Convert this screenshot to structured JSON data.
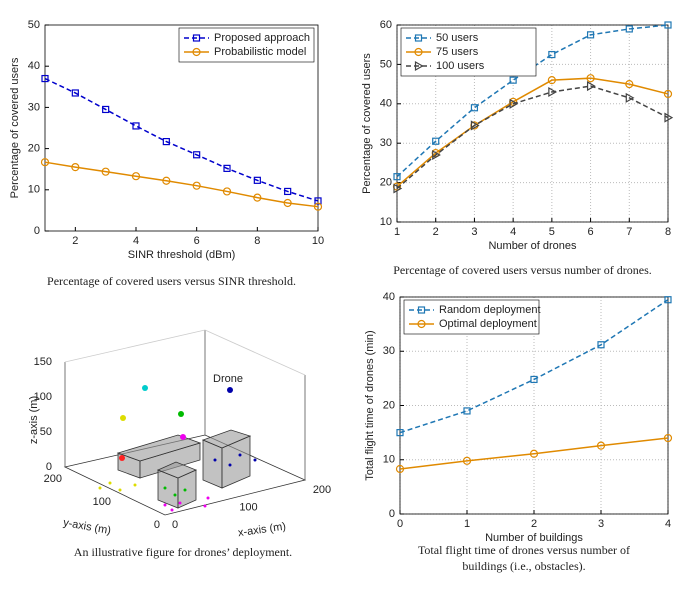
{
  "chart_data": [
    {
      "type": "line",
      "xlabel": "SINR threshold (dBm)",
      "ylabel": "Percentage of covered users",
      "x": [
        1,
        2,
        3,
        4,
        5,
        6,
        7,
        8,
        9,
        10
      ],
      "xlim": [
        1,
        10
      ],
      "xticks": [
        2,
        4,
        6,
        8,
        10
      ],
      "ylim": [
        0,
        50
      ],
      "yticks": [
        0,
        10,
        20,
        30,
        40,
        50
      ],
      "grid": false,
      "legend": "upper right",
      "series": [
        {
          "name": "Proposed approach",
          "color": "#0000cc",
          "marker": "square",
          "dash": true,
          "values": [
            37,
            33.5,
            29.5,
            25.5,
            21.7,
            18.5,
            15.2,
            12.3,
            9.6,
            7.3
          ]
        },
        {
          "name": "Probabilistic model",
          "color": "#e08a00",
          "marker": "circle",
          "dash": false,
          "values": [
            16.7,
            15.5,
            14.4,
            13.3,
            12.2,
            11,
            9.6,
            8.1,
            6.8,
            5.9
          ]
        }
      ],
      "caption": "Percentage of covered users versus SINR threshold."
    },
    {
      "type": "line",
      "xlabel": "Number of drones",
      "ylabel": "Percentage of covered users",
      "x": [
        1,
        2,
        3,
        4,
        5,
        6,
        7,
        8
      ],
      "xlim": [
        1,
        8
      ],
      "xticks": [
        1,
        2,
        3,
        4,
        5,
        6,
        7,
        8
      ],
      "ylim": [
        10,
        60
      ],
      "yticks": [
        10,
        20,
        30,
        40,
        50,
        60
      ],
      "grid": true,
      "legend": "upper left",
      "series": [
        {
          "name": "50 users",
          "color": "#1f77b4",
          "marker": "square",
          "dash": true,
          "values": [
            21.5,
            30.5,
            39,
            46,
            52.5,
            57.5,
            59,
            60
          ]
        },
        {
          "name": "75 users",
          "color": "#e08a00",
          "marker": "circle",
          "dash": false,
          "values": [
            19,
            27.5,
            34.5,
            40.5,
            46,
            46.5,
            45,
            42.5
          ]
        },
        {
          "name": "100 users",
          "color": "#444444",
          "marker": "triangle",
          "dash": true,
          "values": [
            18.5,
            27,
            34.5,
            40,
            43,
            44.5,
            41.5,
            36.5
          ]
        }
      ],
      "caption": "Percentage of covered users versus number of drones."
    },
    {
      "type": "scene3d",
      "xlabel": "x-axis (m)",
      "ylabel": "y-axis (m)",
      "zlabel": "z-axis (m)",
      "xticks": [
        0,
        100,
        200
      ],
      "yticks": [
        0,
        100,
        200
      ],
      "zticks": [
        0,
        50,
        100,
        150
      ],
      "annotation": "Drone",
      "caption": "An illustrative figure for drones’ deployment."
    },
    {
      "type": "line",
      "xlabel": "Number of buildings",
      "ylabel": "Total flight time of drones (min)",
      "x": [
        0,
        1,
        2,
        3,
        4
      ],
      "xlim": [
        0,
        4
      ],
      "xticks": [
        0,
        1,
        2,
        3,
        4
      ],
      "ylim": [
        0,
        40
      ],
      "yticks": [
        0,
        10,
        20,
        30,
        40
      ],
      "grid": true,
      "legend": "upper left",
      "series": [
        {
          "name": "Random deployment",
          "color": "#1f77b4",
          "marker": "square",
          "dash": true,
          "values": [
            15,
            19,
            24.8,
            31.2,
            39.5
          ]
        },
        {
          "name": "Optimal deployment",
          "color": "#e08a00",
          "marker": "circle",
          "dash": false,
          "values": [
            8.3,
            9.8,
            11.1,
            12.6,
            14
          ]
        }
      ],
      "caption": [
        "Total flight time of drones versus number of",
        "buildings (i.e., obstacles)."
      ]
    }
  ]
}
